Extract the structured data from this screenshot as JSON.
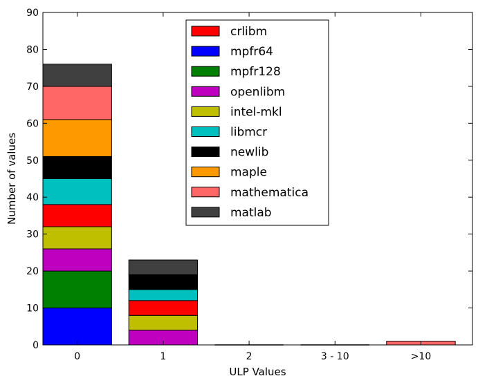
{
  "chart_data": {
    "type": "bar",
    "stacked": true,
    "xlabel": "ULP Values",
    "ylabel": "Number of values",
    "ylim": [
      0,
      90
    ],
    "yticks": [
      0,
      10,
      20,
      30,
      40,
      50,
      60,
      70,
      80,
      90
    ],
    "categories": [
      "0",
      "1",
      "2",
      "3 - 10",
      ">10"
    ],
    "legend_position": "top-center",
    "grid": false,
    "series": [
      {
        "name": "mpfr64",
        "color": "#0000ff",
        "values": [
          10,
          0,
          0,
          0,
          0
        ]
      },
      {
        "name": "mpfr128",
        "color": "#008000",
        "values": [
          10,
          0,
          0,
          0,
          0
        ]
      },
      {
        "name": "openlibm",
        "color": "#bf00bf",
        "values": [
          6,
          4,
          0,
          0,
          0
        ]
      },
      {
        "name": "intel-mkl",
        "color": "#bfbf00",
        "values": [
          6,
          4,
          0,
          0,
          0
        ]
      },
      {
        "name": "crlibm",
        "color": "#ff0000",
        "values": [
          6,
          4,
          0,
          0,
          0
        ]
      },
      {
        "name": "libmcr",
        "color": "#00bfbf",
        "values": [
          7,
          3,
          0,
          0,
          0
        ]
      },
      {
        "name": "newlib",
        "color": "#000000",
        "values": [
          6,
          4,
          0,
          0,
          0
        ]
      },
      {
        "name": "maple",
        "color": "#ff9900",
        "values": [
          10,
          0,
          0,
          0,
          0
        ]
      },
      {
        "name": "mathematica",
        "color": "#ff6666",
        "values": [
          9,
          0,
          0,
          0,
          1
        ]
      },
      {
        "name": "matlab",
        "color": "#404040",
        "values": [
          6,
          4,
          0,
          0,
          0
        ]
      }
    ],
    "legend_order": [
      "crlibm",
      "mpfr64",
      "mpfr128",
      "openlibm",
      "intel-mkl",
      "libmcr",
      "newlib",
      "maple",
      "mathematica",
      "matlab"
    ]
  }
}
